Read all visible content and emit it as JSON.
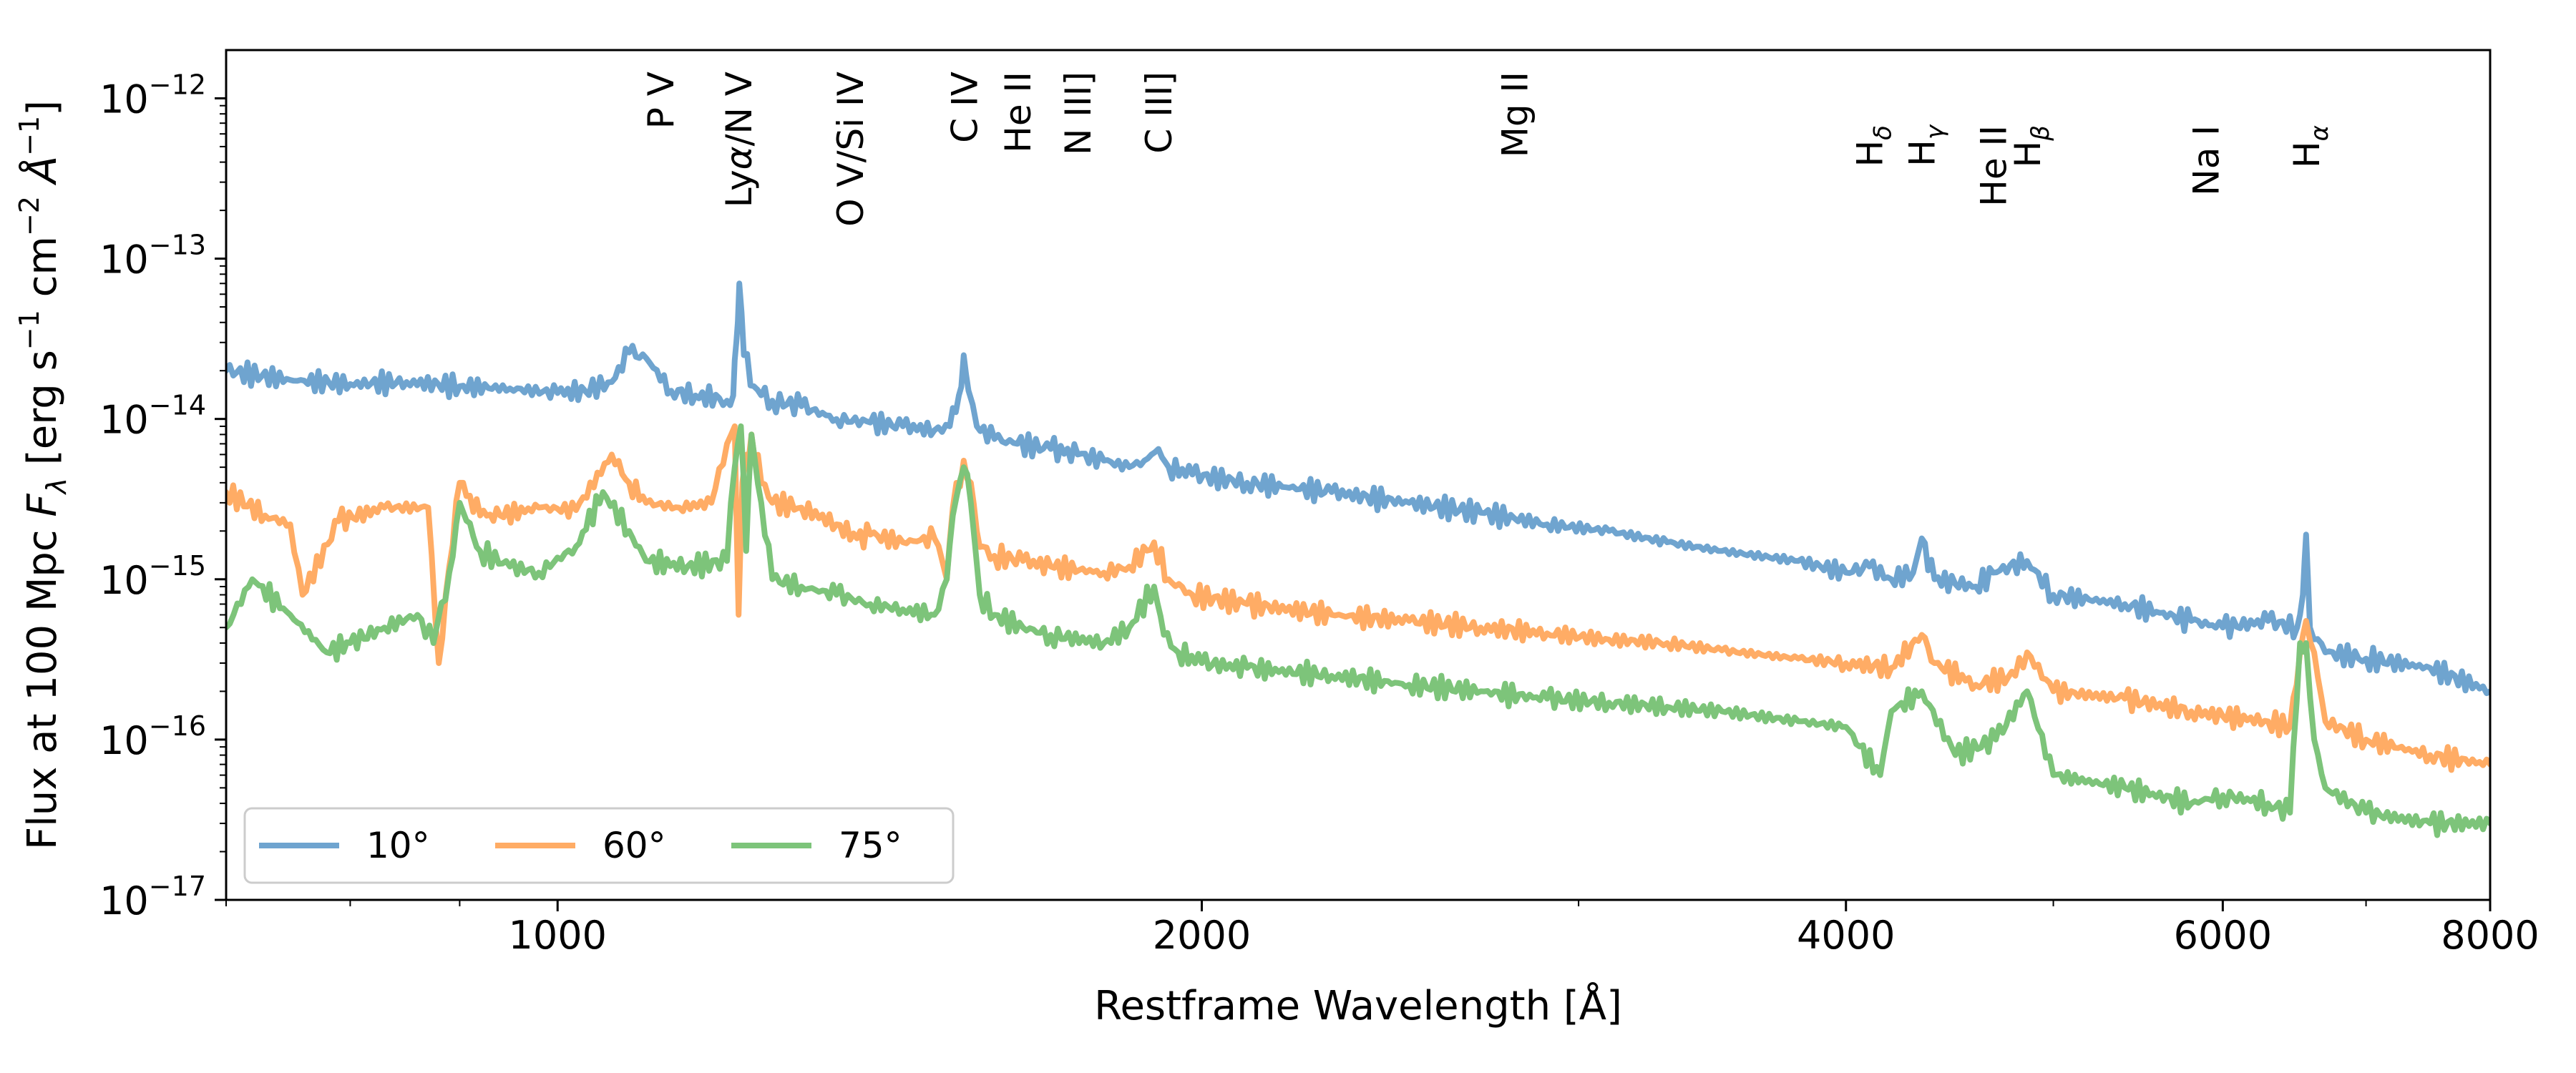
{
  "chart_data": {
    "type": "line",
    "xlabel": "Restframe Wavelength [Å]",
    "ylabel": "Flux at 100 Mpc F_λ [erg s⁻¹ cm⁻² Å⁻¹]",
    "x_scale": "log",
    "y_scale": "log",
    "xlim": [
      700,
      8000
    ],
    "ylim": [
      1e-17,
      2e-12
    ],
    "grid": false,
    "legend_position": "lower-left",
    "x_ticks": [
      {
        "value": 1000,
        "label": "1000"
      },
      {
        "value": 2000,
        "label": "2000"
      },
      {
        "value": 4000,
        "label": "4000"
      },
      {
        "value": 6000,
        "label": "6000"
      },
      {
        "value": 8000,
        "label": "8000"
      }
    ],
    "y_ticks": [
      {
        "value": 1e-12,
        "base": "10",
        "exp": "−12"
      },
      {
        "value": 1e-13,
        "base": "10",
        "exp": "−13"
      },
      {
        "value": 1e-14,
        "base": "10",
        "exp": "−14"
      },
      {
        "value": 1e-15,
        "base": "10",
        "exp": "−15"
      },
      {
        "value": 1e-16,
        "base": "10",
        "exp": "−16"
      },
      {
        "value": 1e-17,
        "base": "10",
        "exp": "−17"
      }
    ],
    "line_labels": [
      {
        "x": 1117,
        "text": "P V",
        "row": 1
      },
      {
        "x": 1215,
        "text": "Lyα/N V",
        "row": 1
      },
      {
        "x": 1370,
        "text": "O V/Si IV",
        "row": 1
      },
      {
        "x": 1549,
        "text": "C IV",
        "row": 1
      },
      {
        "x": 1640,
        "text": "He II",
        "row": 1
      },
      {
        "x": 1750,
        "text": "N III]",
        "row": 1
      },
      {
        "x": 1909,
        "text": "C III]",
        "row": 1
      },
      {
        "x": 2800,
        "text": "Mg II",
        "row": 1
      },
      {
        "x": 4102,
        "text": "Hδ",
        "row": 0
      },
      {
        "x": 4340,
        "text": "Hγ",
        "row": 0
      },
      {
        "x": 4686,
        "text": "He II",
        "row": 0
      },
      {
        "x": 4861,
        "text": "Hβ",
        "row": 0
      },
      {
        "x": 5890,
        "text": "Na I",
        "row": 0
      },
      {
        "x": 6563,
        "text": "Hα",
        "row": 0
      }
    ],
    "series": [
      {
        "name": "10°",
        "color": "#6fa4cf",
        "x": [
          700,
          750,
          800,
          850,
          900,
          950,
          1000,
          1030,
          1060,
          1080,
          1100,
          1130,
          1160,
          1190,
          1200,
          1208,
          1212,
          1216,
          1222,
          1235,
          1260,
          1300,
          1350,
          1400,
          1450,
          1500,
          1525,
          1540,
          1548,
          1556,
          1570,
          1600,
          1640,
          1700,
          1750,
          1800,
          1850,
          1880,
          1909,
          1930,
          1980,
          2100,
          2300,
          2500,
          2700,
          2800,
          2900,
          3100,
          3300,
          3500,
          3800,
          4000,
          4102,
          4200,
          4300,
          4340,
          4400,
          4600,
          4686,
          4861,
          5000,
          5400,
          5800,
          6000,
          6300,
          6500,
          6540,
          6563,
          6590,
          6700,
          7000,
          7500,
          8000
        ],
        "y": [
          2e-14,
          1.75e-14,
          1.65e-14,
          1.7e-14,
          1.6e-14,
          1.55e-14,
          1.45e-14,
          1.5e-14,
          1.7e-14,
          2.6e-14,
          2.4e-14,
          1.5e-14,
          1.4e-14,
          1.35e-14,
          1.3e-14,
          1.4e-14,
          3e-14,
          7e-14,
          2.5e-14,
          1.6e-14,
          1.3e-14,
          1.2e-14,
          1e-14,
          9.5e-15,
          9e-15,
          8.5e-15,
          9e-15,
          1.4e-14,
          2.5e-14,
          1.5e-14,
          9e-15,
          7.5e-15,
          7e-15,
          6.5e-15,
          6e-15,
          5.5e-15,
          5e-15,
          5.5e-15,
          6.5e-15,
          5e-15,
          4.5e-15,
          4e-15,
          3.5e-15,
          3e-15,
          2.6e-15,
          2.4e-15,
          2.2e-15,
          2e-15,
          1.7e-15,
          1.5e-15,
          1.3e-15,
          1.1e-15,
          1.2e-15,
          1e-15,
          1.1e-15,
          1.8e-15,
          1e-15,
          9e-16,
          1.1e-15,
          1.3e-15,
          8e-16,
          7e-16,
          5.5e-16,
          5e-16,
          5.5e-16,
          5e-16,
          8e-16,
          1.9e-15,
          5e-16,
          3.5e-16,
          3.2e-16,
          2.8e-16,
          2e-16
        ]
      },
      {
        "name": "60°",
        "color": "#ffac65",
        "x": [
          700,
          730,
          750,
          760,
          790,
          830,
          870,
          880,
          890,
          900,
          920,
          940,
          980,
          1020,
          1060,
          1080,
          1100,
          1140,
          1180,
          1200,
          1210,
          1215,
          1220,
          1226,
          1232,
          1245,
          1260,
          1300,
          1350,
          1380,
          1400,
          1450,
          1500,
          1520,
          1530,
          1548,
          1560,
          1570,
          1580,
          1600,
          1650,
          1700,
          1800,
          1850,
          1900,
          1930,
          1980,
          2100,
          2300,
          2500,
          2700,
          2900,
          3100,
          3300,
          3500,
          3800,
          4000,
          4200,
          4340,
          4400,
          4600,
          4800,
          4861,
          5000,
          5400,
          5800,
          6000,
          6300,
          6450,
          6520,
          6563,
          6620,
          6700,
          7000,
          7500,
          8000
        ],
        "y": [
          3.5e-15,
          2.5e-15,
          2.2e-15,
          8e-16,
          2.3e-15,
          2.8e-15,
          2.8e-15,
          3e-16,
          1.2e-15,
          4e-15,
          2.5e-15,
          2.5e-15,
          2.8e-15,
          2.7e-15,
          6e-15,
          4e-15,
          3e-15,
          2.8e-15,
          3e-15,
          7e-15,
          9e-15,
          6e-16,
          4e-15,
          6e-15,
          8e-15,
          4e-15,
          3e-15,
          2.8e-15,
          2.2e-15,
          1.8e-15,
          1.9e-15,
          1.7e-15,
          1.8e-15,
          1e-15,
          2.8e-15,
          5.5e-15,
          4e-15,
          2e-15,
          1.6e-15,
          1.4e-15,
          1.3e-15,
          1.2e-15,
          1.1e-15,
          1.2e-15,
          1.7e-15,
          1e-15,
          8e-16,
          7e-16,
          6e-16,
          5.5e-16,
          5e-16,
          4.6e-16,
          4.2e-16,
          4e-16,
          3.6e-16,
          3.2e-16,
          3e-16,
          2.8e-16,
          4.5e-16,
          3e-16,
          2.2e-16,
          2.5e-16,
          3.5e-16,
          2e-16,
          1.8e-16,
          1.5e-16,
          1.4e-16,
          1.3e-16,
          1.2e-16,
          3.5e-16,
          5.5e-16,
          3.5e-16,
          1.3e-16,
          1e-16,
          8e-17,
          7e-17
        ]
      },
      {
        "name": "75°",
        "color": "#7dc47a",
        "x": [
          700,
          720,
          750,
          780,
          800,
          830,
          860,
          875,
          890,
          900,
          920,
          950,
          980,
          1020,
          1050,
          1080,
          1100,
          1150,
          1200,
          1210,
          1218,
          1225,
          1232,
          1245,
          1260,
          1300,
          1350,
          1400,
          1450,
          1500,
          1520,
          1530,
          1548,
          1560,
          1575,
          1600,
          1650,
          1700,
          1800,
          1850,
          1900,
          1920,
          1950,
          2000,
          2100,
          2300,
          2500,
          2700,
          2900,
          3100,
          3300,
          3500,
          3800,
          4000,
          4150,
          4200,
          4340,
          4500,
          4700,
          4861,
          5000,
          5400,
          5800,
          6000,
          6300,
          6450,
          6520,
          6563,
          6620,
          6700,
          7000,
          7500,
          8000
        ],
        "y": [
          5e-16,
          1e-15,
          6e-16,
          3.5e-16,
          4e-16,
          5e-16,
          6e-16,
          4e-16,
          1.1e-15,
          3e-15,
          1.5e-15,
          1.2e-15,
          1.1e-15,
          1.6e-15,
          3.5e-15,
          2e-15,
          1.3e-15,
          1.2e-15,
          1.3e-15,
          5e-15,
          9e-15,
          1.5e-15,
          8e-15,
          3e-15,
          1e-15,
          9e-16,
          8e-16,
          7e-16,
          6.5e-16,
          6e-16,
          1e-15,
          2.5e-15,
          5e-15,
          3e-15,
          8e-16,
          6e-16,
          5e-16,
          4.5e-16,
          4e-16,
          5e-16,
          9e-16,
          4.5e-16,
          3.5e-16,
          3e-16,
          2.8e-16,
          2.5e-16,
          2.2e-16,
          2e-16,
          1.8e-16,
          1.7e-16,
          1.6e-16,
          1.5e-16,
          1.3e-16,
          1.2e-16,
          6e-17,
          1.5e-16,
          2e-16,
          8e-17,
          1e-16,
          2e-16,
          6e-17,
          5e-17,
          4e-17,
          4.5e-17,
          4e-17,
          3.5e-17,
          4e-16,
          4e-16,
          1e-16,
          5e-17,
          3.5e-17,
          3e-17,
          3e-17
        ]
      }
    ]
  }
}
